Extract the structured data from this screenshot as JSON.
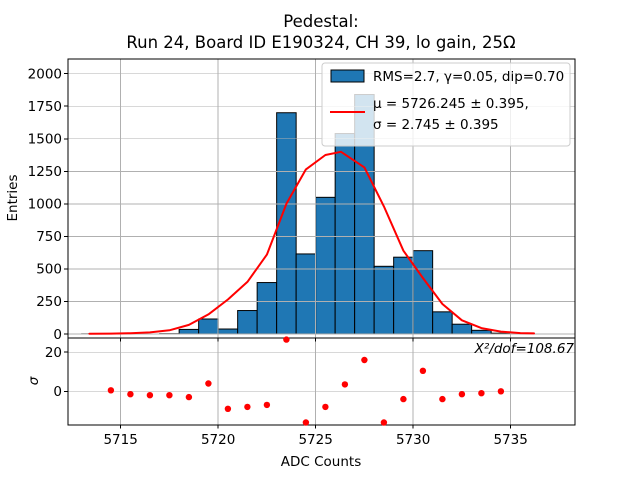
{
  "title_line1": "Pedestal:",
  "title_line2": "Run 24, Board ID E190324, CH 39, lo gain, 25Ω",
  "legend": {
    "entry1_label": "RMS=2.7, γ=0.05, dip=0.70",
    "entry2_line1": "μ = 5726.245 ± 0.395,",
    "entry2_line2": "σ = 2.745 ± 0.395"
  },
  "colors": {
    "bar_fill": "#1f77b4",
    "bar_edge": "#000000",
    "fit_line": "#ff0000",
    "residual_dot": "#ff0000",
    "grid": "#b0b0b0",
    "spine": "#000000",
    "legend_border": "#cccccc",
    "legend_bg_rgba": "255,255,255,0.8"
  },
  "chart_data": [
    {
      "type": "bar",
      "subtype": "histogram",
      "title": "Pedestal: Run 24, Board ID E190324, CH 39, lo gain, 25Ω",
      "xlabel": "ADC Counts",
      "ylabel": "Entries",
      "bin_start": 5713,
      "bin_width": 1,
      "values": [
        1,
        2,
        0,
        0,
        2,
        35,
        115,
        38,
        180,
        395,
        1700,
        615,
        1050,
        1540,
        1840,
        520,
        590,
        640,
        170,
        75,
        28,
        6
      ],
      "bin_labels": [
        5713,
        5714,
        5715,
        5716,
        5717,
        5718,
        5719,
        5720,
        5721,
        5722,
        5723,
        5724,
        5725,
        5726,
        5727,
        5728,
        5729,
        5730,
        5731,
        5732,
        5733,
        5734
      ],
      "xlim": [
        5712.3,
        5738.3
      ],
      "ylim": [
        -31,
        2113
      ],
      "xticks": [
        5715,
        5720,
        5725,
        5730,
        5735
      ],
      "yticks": [
        0,
        250,
        500,
        750,
        1000,
        1250,
        1500,
        1750,
        2000
      ],
      "grid": true,
      "legend_position": "upper right",
      "fit_curve": {
        "name": "gaussian fit",
        "mu": 5726.245,
        "mu_err": 0.395,
        "sigma": 2.745,
        "sigma_err": 0.395,
        "peak": 1400,
        "points": [
          [
            5713.4,
            2
          ],
          [
            5714.5,
            3
          ],
          [
            5715.5,
            6
          ],
          [
            5716.5,
            12
          ],
          [
            5717.5,
            28
          ],
          [
            5718.5,
            70
          ],
          [
            5719.5,
            150
          ],
          [
            5720.5,
            265
          ],
          [
            5721.5,
            400
          ],
          [
            5722.5,
            610
          ],
          [
            5723.5,
            1000
          ],
          [
            5724.5,
            1265
          ],
          [
            5725.5,
            1375
          ],
          [
            5726.3,
            1400
          ],
          [
            5727.5,
            1280
          ],
          [
            5728.5,
            980
          ],
          [
            5729.5,
            640
          ],
          [
            5730.5,
            430
          ],
          [
            5731.5,
            230
          ],
          [
            5732.5,
            105
          ],
          [
            5733.5,
            45
          ],
          [
            5734.5,
            18
          ],
          [
            5735.5,
            7
          ],
          [
            5736.2,
            4
          ]
        ]
      }
    },
    {
      "type": "scatter",
      "subtype": "residuals",
      "xlabel": "ADC Counts",
      "ylabel": "σ",
      "annotation": "X²/dof=108.67",
      "x": [
        5714.5,
        5715.5,
        5716.5,
        5717.5,
        5718.5,
        5719.5,
        5720.5,
        5721.5,
        5722.5,
        5723.5,
        5724.5,
        5725.5,
        5726.5,
        5727.5,
        5728.5,
        5729.5,
        5730.5,
        5731.5,
        5732.5,
        5733.5,
        5734.5
      ],
      "y": [
        0.5,
        -1.5,
        -2,
        -2,
        -3,
        4,
        -9,
        -8,
        -7,
        26.5,
        -16,
        -8,
        3.5,
        16,
        -16,
        -4,
        10.5,
        -4,
        -1.5,
        -1,
        0
      ],
      "xlim": [
        5712.3,
        5738.3
      ],
      "ylim": [
        -17.3,
        27.3
      ],
      "xticks": [
        5715,
        5720,
        5725,
        5730,
        5735
      ],
      "yticks": [
        0,
        20
      ],
      "grid": true
    }
  ]
}
